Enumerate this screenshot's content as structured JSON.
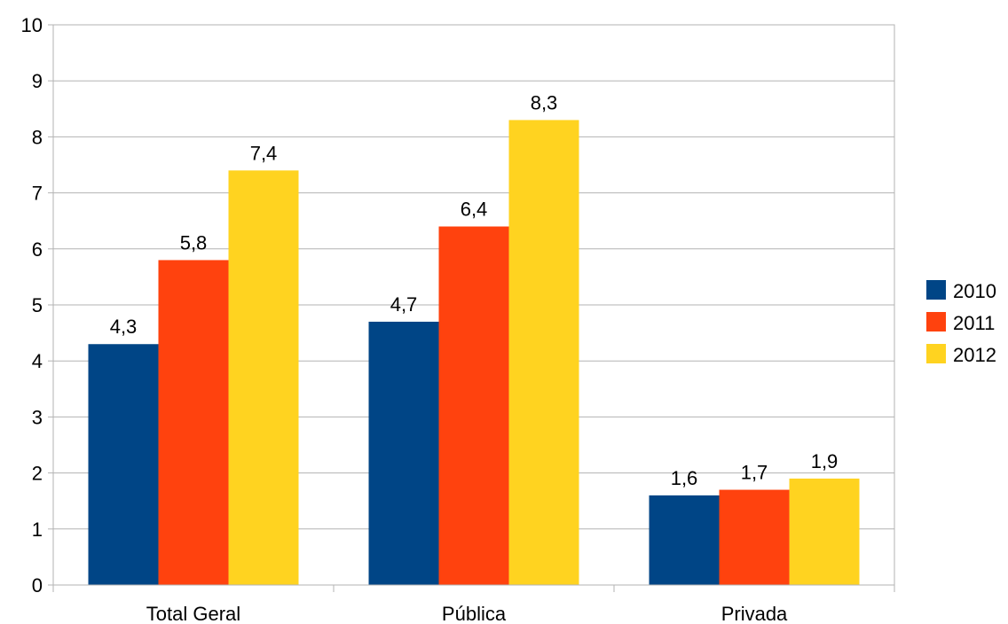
{
  "chart_data": {
    "type": "bar",
    "categories": [
      "Total Geral",
      "Pública",
      "Privada"
    ],
    "series": [
      {
        "name": "2010",
        "values": [
          4.3,
          4.7,
          1.6
        ],
        "labels": [
          "4,3",
          "4,7",
          "1,6"
        ],
        "color": "#004586"
      },
      {
        "name": "2011",
        "values": [
          5.8,
          6.4,
          1.7
        ],
        "labels": [
          "5,8",
          "6,4",
          "1,7"
        ],
        "color": "#ff420e"
      },
      {
        "name": "2012",
        "values": [
          7.4,
          8.3,
          1.9
        ],
        "labels": [
          "7,4",
          "8,3",
          "1,9"
        ],
        "color": "#ffd320"
      }
    ],
    "ylim": [
      0,
      10
    ],
    "yticks": [
      0,
      1,
      2,
      3,
      4,
      5,
      6,
      7,
      8,
      9,
      10
    ],
    "ytick_labels": [
      "0",
      "1",
      "2",
      "3",
      "4",
      "5",
      "6",
      "7",
      "8",
      "9",
      "10"
    ],
    "grid": true,
    "legend_position": "right"
  }
}
